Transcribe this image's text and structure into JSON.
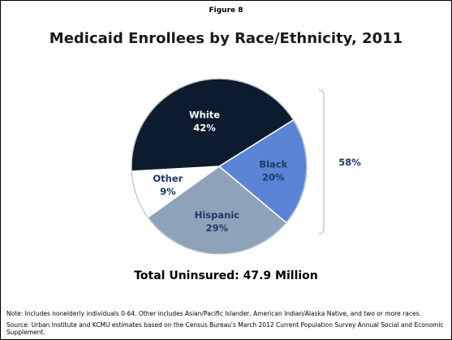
{
  "figure_label": "Figure 8",
  "chart_data": {
    "type": "pie",
    "title": "Medicaid Enrollees by Race/Ethnicity, 2011",
    "slices": [
      {
        "name": "Black",
        "value": 20,
        "label": "20%",
        "color": "#5b84d6",
        "text_color": "#1f3864"
      },
      {
        "name": "Hispanic",
        "value": 29,
        "label": "29%",
        "color": "#8ea2ba",
        "text_color": "#1f3864"
      },
      {
        "name": "Other",
        "value": 9,
        "label": "9%",
        "color": "#ffffff",
        "text_color": "#1f3864"
      },
      {
        "name": "White",
        "value": 42,
        "label": "42%",
        "color": "#0c1b2e",
        "text_color": "#ffffff"
      }
    ],
    "bracket": {
      "label": "58%",
      "covers": [
        "Black",
        "Hispanic",
        "Other"
      ]
    },
    "total_label": "Total Uninsured: 47.9 Million"
  },
  "notes": {
    "note": "Note: Includes nonelderly individuals 0-64. Other includes Asian/Pacific Islander, American Indian/Alaska Native, and two or more races.",
    "source": "Source: Urban Institute and KCMU estimates based on the Census Bureau's March 2012 Current Population Survey  Annual Social and Economic Supplement."
  }
}
